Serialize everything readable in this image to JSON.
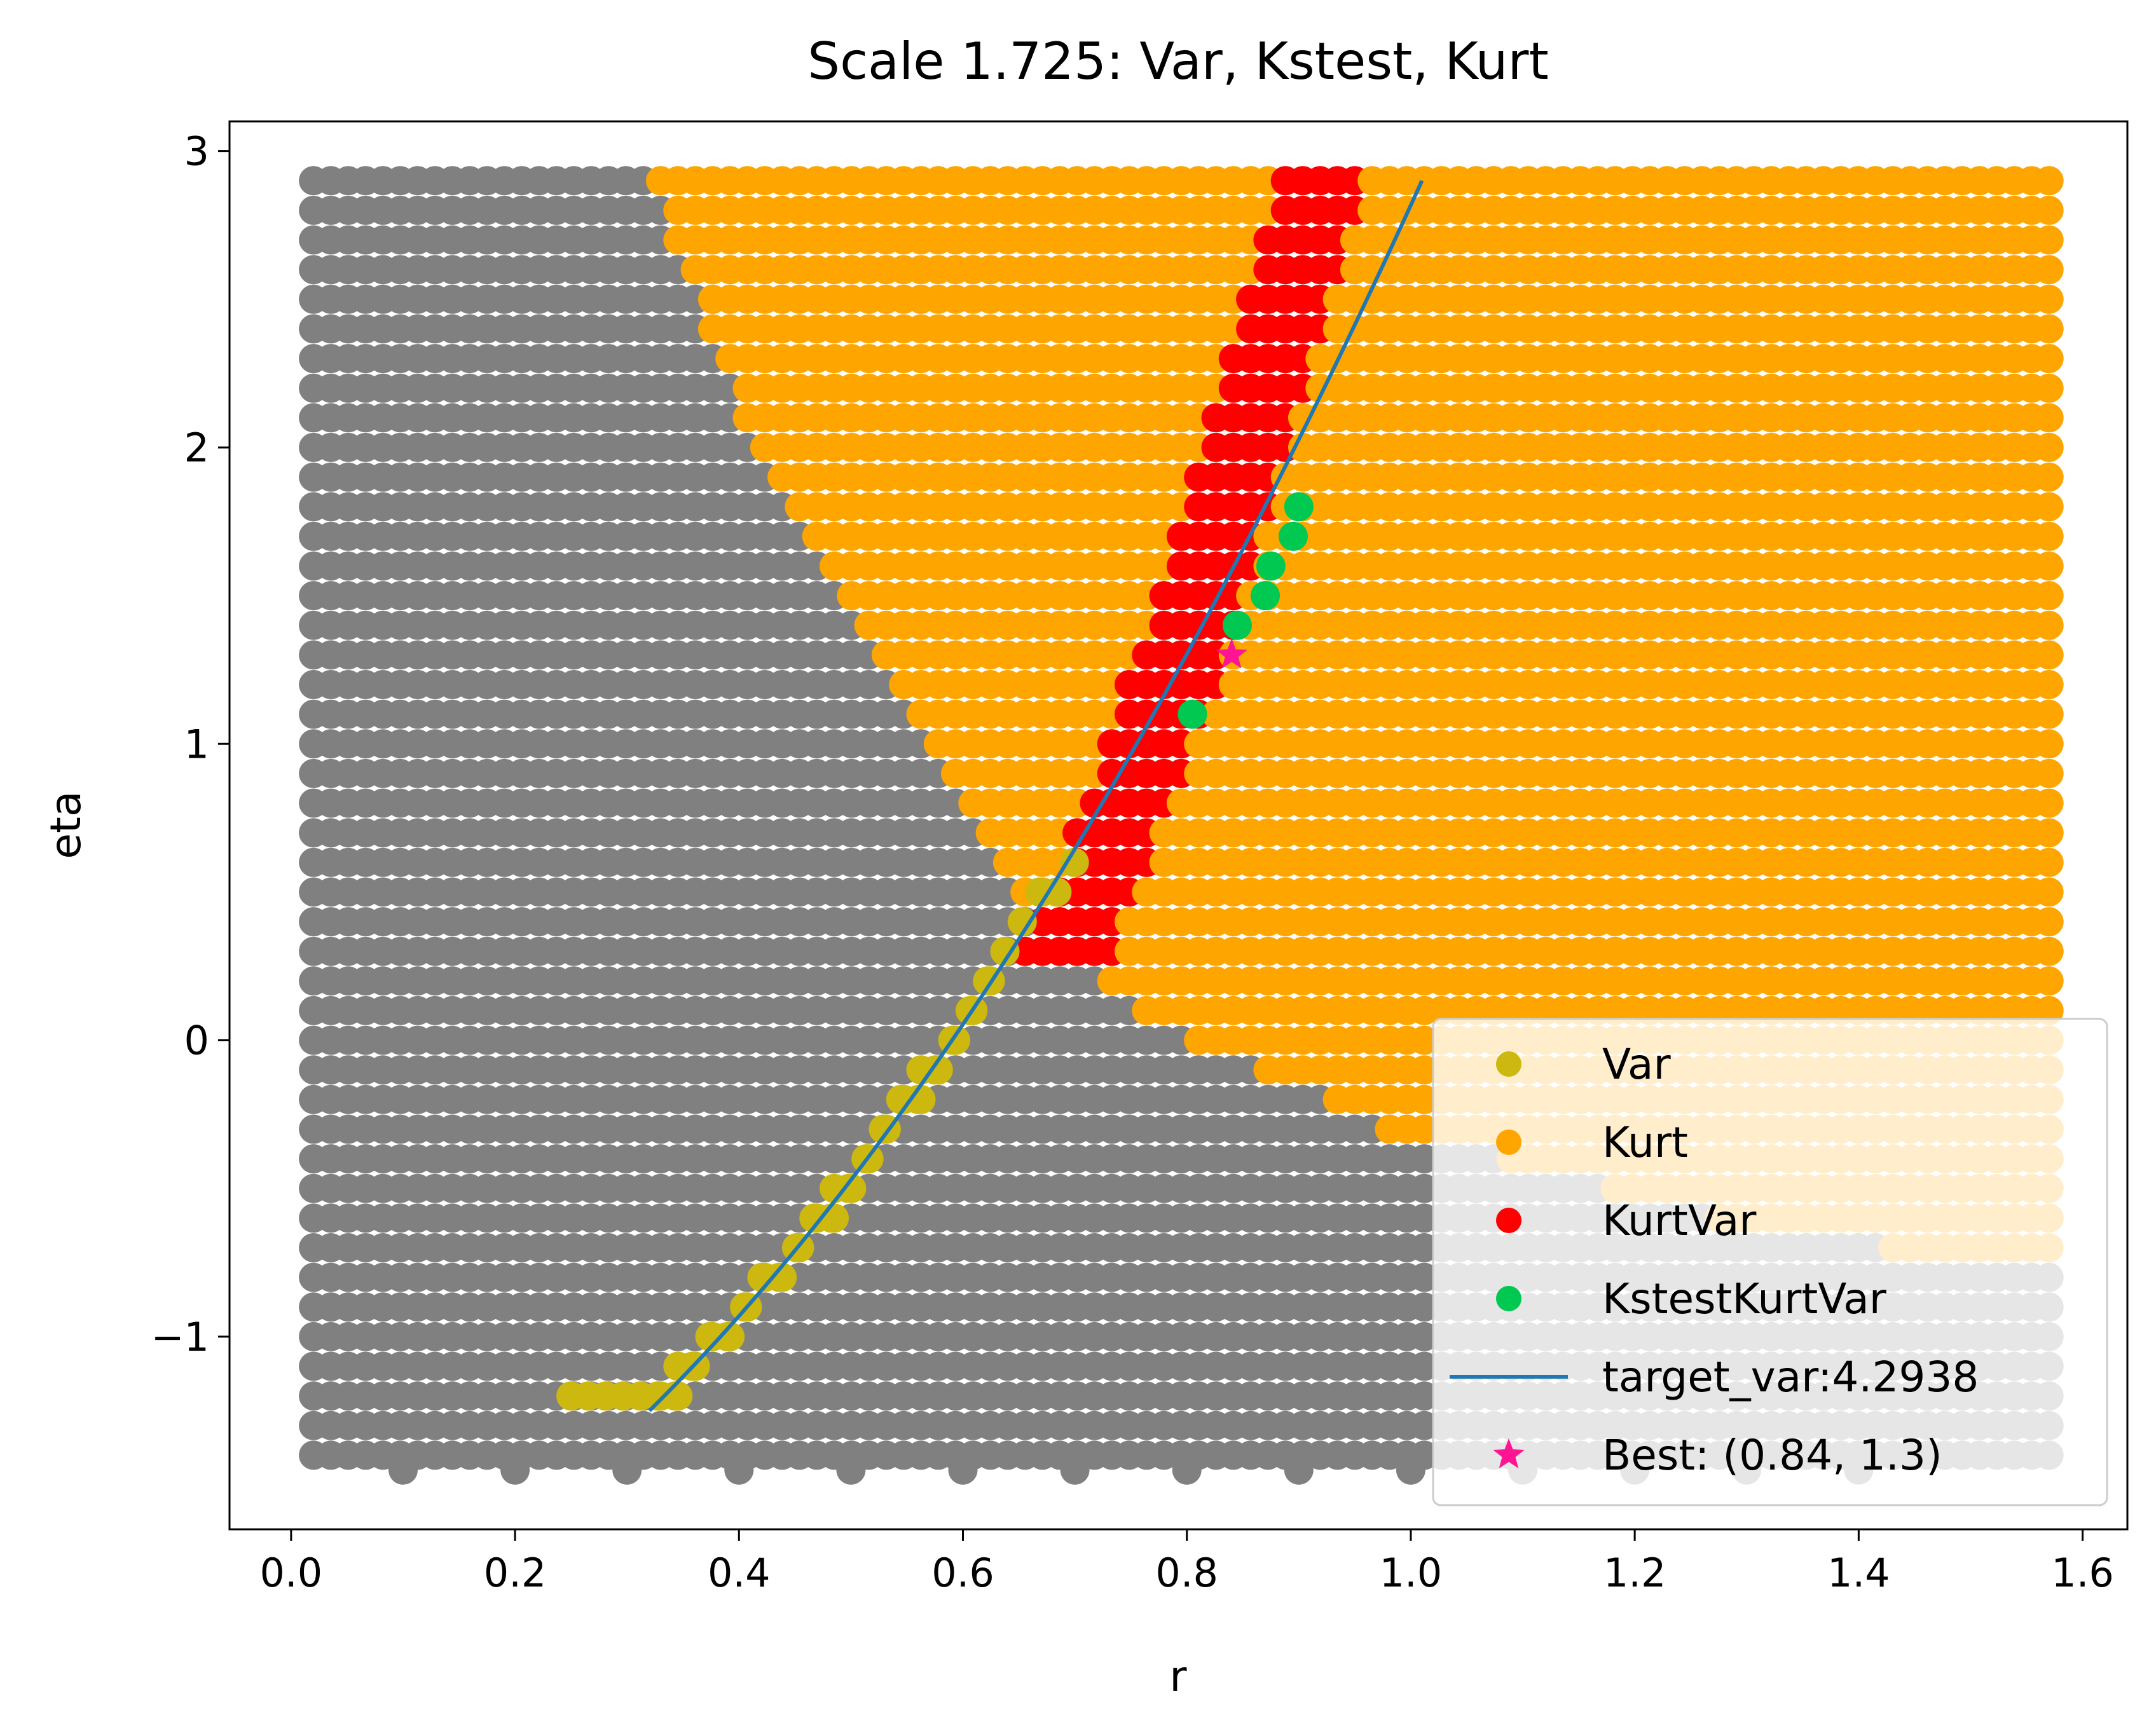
{
  "chart_data": {
    "type": "scatter",
    "title": "Scale 1.725: Var, Kstest, Kurt",
    "xlabel": "r",
    "ylabel": "eta",
    "xlim": [
      -0.055,
      1.64
    ],
    "ylim": [
      -1.65,
      3.1
    ],
    "xticks": [
      0.0,
      0.2,
      0.4,
      0.6,
      0.8,
      1.0,
      1.2,
      1.4,
      1.6
    ],
    "xtick_labels": [
      "0.0",
      "0.2",
      "0.4",
      "0.6",
      "0.8",
      "1.0",
      "1.2",
      "1.4",
      "1.6"
    ],
    "yticks": [
      -1,
      0,
      1,
      2,
      3
    ],
    "ytick_labels": [
      "−1",
      "0",
      "1",
      "2",
      "3"
    ],
    "grid": false,
    "legend_position": "lower-right",
    "grid_sampling": {
      "r_min": 0.02,
      "r_max": 1.57,
      "r_step": 0.0155,
      "eta_min": -1.4,
      "eta_max": 2.9,
      "eta_step": 0.1
    },
    "background_points": {
      "color": "#808080",
      "bottom_row": {
        "eta": -1.45,
        "r": [
          0.1,
          0.2,
          0.3,
          0.4,
          0.5,
          0.6,
          0.7,
          0.8,
          0.9,
          1.0,
          1.1,
          1.2,
          1.3,
          1.4
        ]
      }
    },
    "series": [
      {
        "name": "Var",
        "marker": "circle",
        "color": "#CCB80F"
      },
      {
        "name": "Kurt",
        "marker": "circle",
        "color": "#FFA500"
      },
      {
        "name": "KurtVar",
        "marker": "circle",
        "color": "#FF0000"
      },
      {
        "name": "KstestKurtVar",
        "marker": "circle",
        "color": "#00C850",
        "points": [
          [
            0.805,
            1.1
          ],
          [
            0.845,
            1.4
          ],
          [
            0.87,
            1.5
          ],
          [
            0.875,
            1.6
          ],
          [
            0.895,
            1.7
          ],
          [
            0.9,
            1.8
          ]
        ]
      },
      {
        "name": "target_var:4.2938",
        "marker": "line",
        "color": "#1F77B4",
        "x_range": [
          0.32,
          1.01
        ]
      },
      {
        "name": "Best: (0.84, 1.3)",
        "marker": "star",
        "color": "#FF1493",
        "points": [
          [
            0.84,
            1.3
          ]
        ]
      }
    ]
  }
}
